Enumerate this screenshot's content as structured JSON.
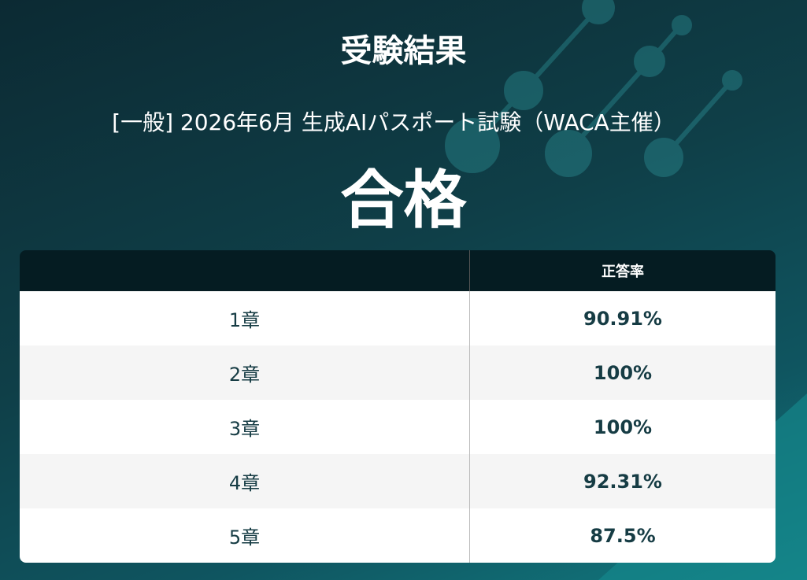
{
  "header": {
    "title": "受験結果",
    "exam": "[一般] 2026年6月 生成AIパスポート試験（WACA主催）",
    "result": "合格"
  },
  "table": {
    "columns": [
      "正答率"
    ],
    "rows": [
      [
        "1章",
        "90.91%"
      ],
      [
        "2章",
        "100%"
      ],
      [
        "3章",
        "100%"
      ],
      [
        "4章",
        "92.31%"
      ],
      [
        "5章",
        "87.5%"
      ]
    ]
  }
}
